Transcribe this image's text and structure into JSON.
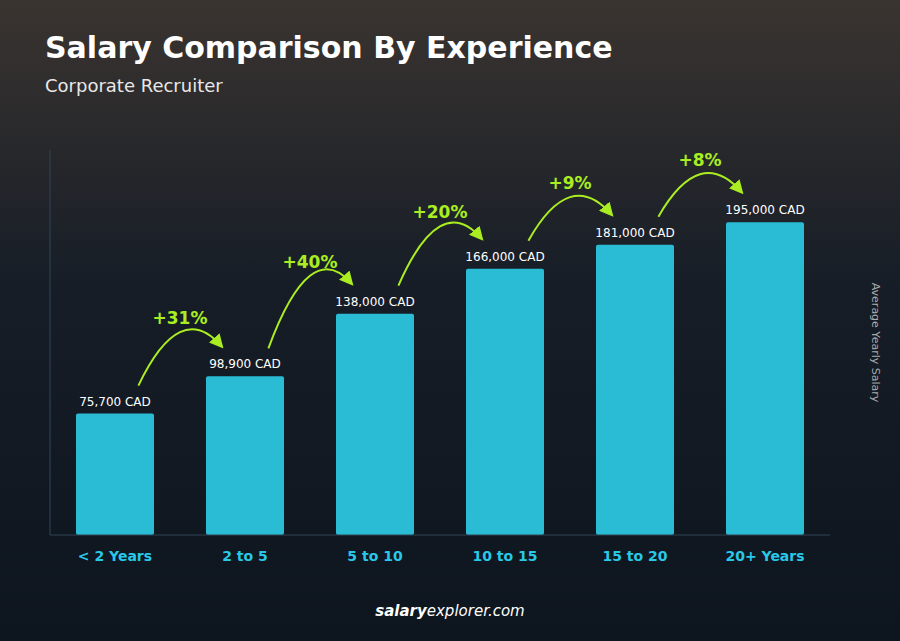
{
  "chart_data": {
    "type": "bar",
    "title": "Salary Comparison By Experience",
    "subtitle": "Corporate Recruiter",
    "ylabel": "Average Yearly Salary",
    "categories": [
      "< 2 Years",
      "2 to 5",
      "5 to 10",
      "10 to 15",
      "15 to 20",
      "20+ Years"
    ],
    "values": [
      75700,
      98900,
      138000,
      166000,
      181000,
      195000
    ],
    "value_labels": [
      "75,700 CAD",
      "98,900 CAD",
      "138,000 CAD",
      "166,000 CAD",
      "181,000 CAD",
      "195,000 CAD"
    ],
    "data_labels": true,
    "annotations": [
      "+31%",
      "+40%",
      "+20%",
      "+9%",
      "+8%"
    ],
    "footer": [
      "salary",
      "explorer.com"
    ],
    "color": "#29bcd4",
    "ylim": [
      0,
      240000
    ],
    "tick_labels": "x"
  }
}
